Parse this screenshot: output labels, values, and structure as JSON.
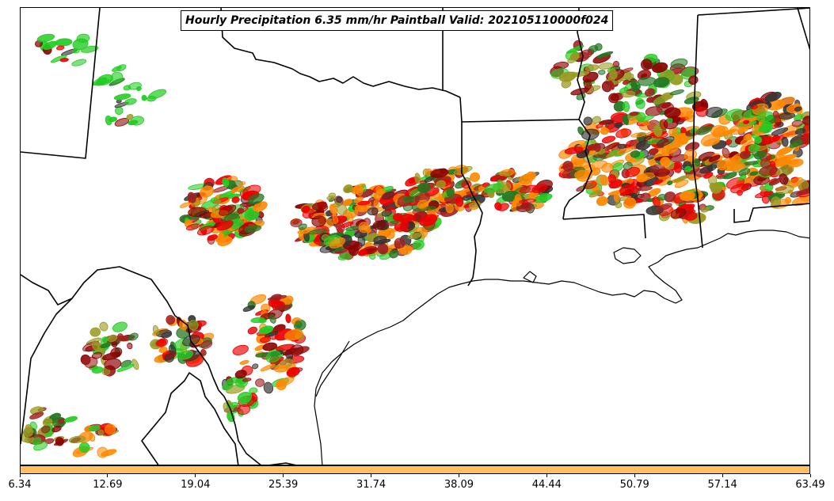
{
  "title": "Hourly Precipitation 6.35 mm/hr Paintball Valid: 202105110000f024",
  "colorbar": {
    "color": "#ffc060",
    "tick_labels": [
      "6.34",
      "12.69",
      "19.04",
      "25.39",
      "31.74",
      "38.09",
      "44.44",
      "50.79",
      "57.14",
      "63.49"
    ]
  },
  "member_colors": [
    "#22cc22",
    "#ff8800",
    "#ee0000",
    "#8b0000",
    "#a02020",
    "#999922",
    "#227722",
    "#333333"
  ],
  "map_features": [
    "state-borders",
    "coastline",
    "precipitation-paintballs"
  ]
}
